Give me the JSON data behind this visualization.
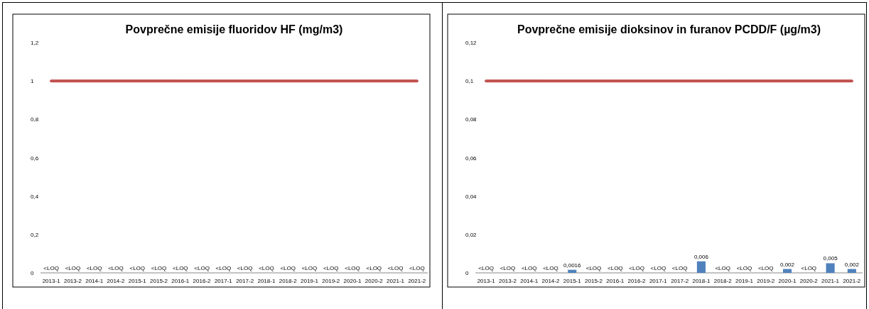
{
  "chart_data": [
    {
      "type": "bar",
      "title": "Povprečne emisije fluoridov HF (mg/m3)",
      "categories": [
        "2013-1",
        "2013-2",
        "2014-1",
        "2014-2",
        "2015-1",
        "2015-2",
        "2016-1",
        "2016-2",
        "2017-1",
        "2017-2",
        "2018-1",
        "2018-2",
        "2019-1",
        "2019-2",
        "2020-1",
        "2020-2",
        "2021-1",
        "2021-2"
      ],
      "series": [
        {
          "values": [
            null,
            null,
            null,
            null,
            null,
            null,
            null,
            null,
            null,
            null,
            null,
            null,
            null,
            null,
            null,
            null,
            null,
            null
          ],
          "value_labels": [
            "<LOQ",
            "<LOQ",
            "<LOQ",
            "<LOQ",
            "<LOQ",
            "<LOQ",
            "<LOQ",
            "<LOQ",
            "<LOQ",
            "<LOQ",
            "<LOQ",
            "<LOQ",
            "<LOQ",
            "<LOQ",
            "<LOQ",
            "<LOQ",
            "<LOQ",
            "<LOQ"
          ]
        },
        {
          "type": "line",
          "color": "#c0504d",
          "values": [
            1,
            1,
            1,
            1,
            1,
            1,
            1,
            1,
            1,
            1,
            1,
            1,
            1,
            1,
            1,
            1,
            1,
            1
          ]
        }
      ],
      "ylim": [
        0,
        1.2
      ],
      "yticks": [
        {
          "value": 0,
          "label": "0"
        },
        {
          "value": 0.2,
          "label": "0,2"
        },
        {
          "value": 0.4,
          "label": "0,4"
        },
        {
          "value": 0.6,
          "label": "0,6"
        },
        {
          "value": 0.8,
          "label": "0,8"
        },
        {
          "value": 1,
          "label": "1"
        },
        {
          "value": 1.2,
          "label": "1,2"
        }
      ],
      "grid": false
    },
    {
      "type": "bar",
      "title": "Povprečne emisije dioksinov in furanov PCDD/F (µg/m3)",
      "categories": [
        "2013-1",
        "2013-2",
        "2014-1",
        "2014-2",
        "2015-1",
        "2015-2",
        "2016-1",
        "2016-2",
        "2017-1",
        "2017-2",
        "2018-1",
        "2018-2",
        "2019-1",
        "2019-2",
        "2020-1",
        "2020-2",
        "2021-1",
        "2021-2"
      ],
      "series": [
        {
          "color": "#4f81bd",
          "values": [
            null,
            null,
            null,
            null,
            0.0016,
            null,
            null,
            null,
            null,
            null,
            0.006,
            null,
            null,
            null,
            0.002,
            null,
            0.005,
            0.002
          ],
          "value_labels": [
            "<LOQ",
            "<LOQ",
            "<LOQ",
            "<LOQ",
            "0,0016",
            "<LOQ",
            "<LOQ",
            "<LOQ",
            "<LOQ",
            "<LOQ",
            "0,006",
            "<LOQ",
            "<LOQ",
            "<LOQ",
            "0,002",
            "<LOQ",
            "0,005",
            "0,002"
          ]
        },
        {
          "type": "line",
          "color": "#c0504d",
          "values": [
            0.1,
            0.1,
            0.1,
            0.1,
            0.1,
            0.1,
            0.1,
            0.1,
            0.1,
            0.1,
            0.1,
            0.1,
            0.1,
            0.1,
            0.1,
            0.1,
            0.1,
            0.1
          ]
        }
      ],
      "ylim": [
        0,
        0.12
      ],
      "yticks": [
        {
          "value": 0,
          "label": "0"
        },
        {
          "value": 0.02,
          "label": "0,02"
        },
        {
          "value": 0.04,
          "label": "0,04"
        },
        {
          "value": 0.06,
          "label": "0,06"
        },
        {
          "value": 0.08,
          "label": "0,08"
        },
        {
          "value": 0.1,
          "label": "0,1"
        },
        {
          "value": 0.12,
          "label": "0,12"
        }
      ],
      "grid": false
    }
  ]
}
